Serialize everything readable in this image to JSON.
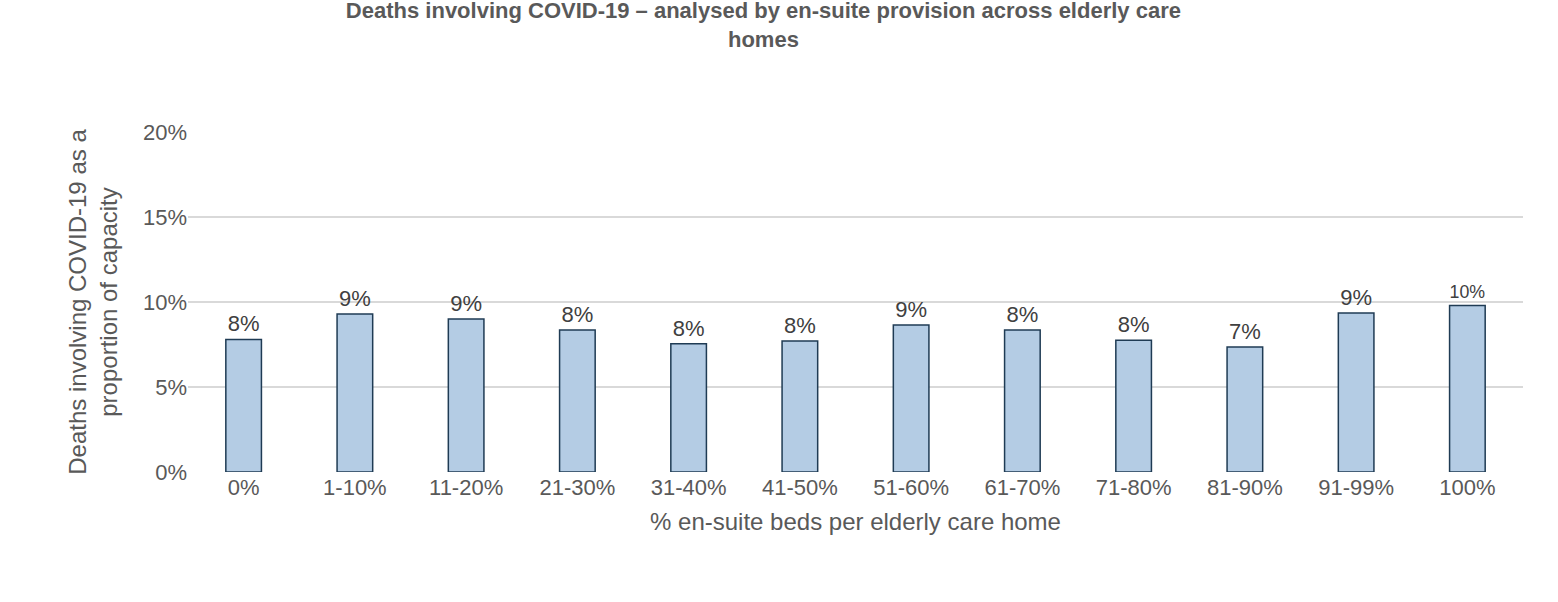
{
  "chart_data": {
    "type": "bar",
    "title": "Deaths involving COVID-19 – analysed by en-suite provision across elderly care homes",
    "x_label": "% en-suite beds per elderly care home",
    "y_label": "Deaths involving COVID-19 as a proportion of capacity",
    "categories": [
      "0%",
      "1-10%",
      "11-20%",
      "21-30%",
      "31-40%",
      "41-50%",
      "51-60%",
      "61-70%",
      "71-80%",
      "81-90%",
      "91-99%",
      "100%"
    ],
    "values": [
      7.8,
      9.3,
      9.0,
      8.35,
      7.55,
      7.7,
      8.65,
      8.35,
      7.75,
      7.35,
      9.35,
      9.8
    ],
    "value_labels": [
      "8%",
      "9%",
      "9%",
      "8%",
      "8%",
      "8%",
      "9%",
      "8%",
      "8%",
      "7%",
      "9%",
      "10%"
    ],
    "color": "#b4cce4",
    "ylim": [
      0,
      20
    ],
    "yticks": [
      {
        "value": 0,
        "label": "0%"
      },
      {
        "value": 5,
        "label": "5%"
      },
      {
        "value": 10,
        "label": "10%"
      },
      {
        "value": 15,
        "label": "15%"
      },
      {
        "value": 20,
        "label": "20%"
      }
    ],
    "grid": true,
    "data_labels": true
  }
}
